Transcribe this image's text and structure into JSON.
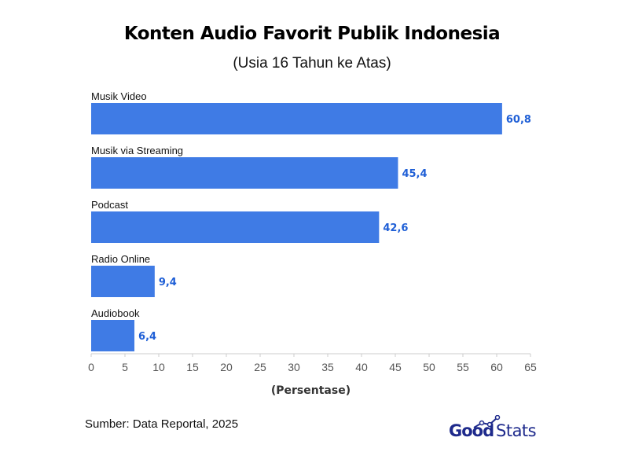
{
  "title": "Konten Audio Favorit Publik Indonesia",
  "subtitle": "(Usia 16 Tahun ke Atas)",
  "source": "Sumber: Data Reportal, 2025",
  "logo": {
    "part1": "Good",
    "part2": "Stats"
  },
  "colors": {
    "bar": "#3f7be5",
    "value_label": "#1f5fd6",
    "axis": "#cccccc",
    "logo": "#1e2a8c"
  },
  "chart_data": {
    "type": "bar",
    "orientation": "horizontal",
    "categories": [
      "Musik Video",
      "Musik via Streaming",
      "Podcast",
      "Radio Online",
      "Audiobook"
    ],
    "values": [
      60.8,
      45.4,
      42.6,
      9.4,
      6.4
    ],
    "value_labels": [
      "60,8",
      "45,4",
      "42,6",
      "9,4",
      "6,4"
    ],
    "xlabel": "(Persentase)",
    "xlim": [
      0,
      65
    ],
    "xticks": [
      0,
      5,
      10,
      15,
      20,
      25,
      30,
      35,
      40,
      45,
      50,
      55,
      60,
      65
    ],
    "grid": false
  }
}
